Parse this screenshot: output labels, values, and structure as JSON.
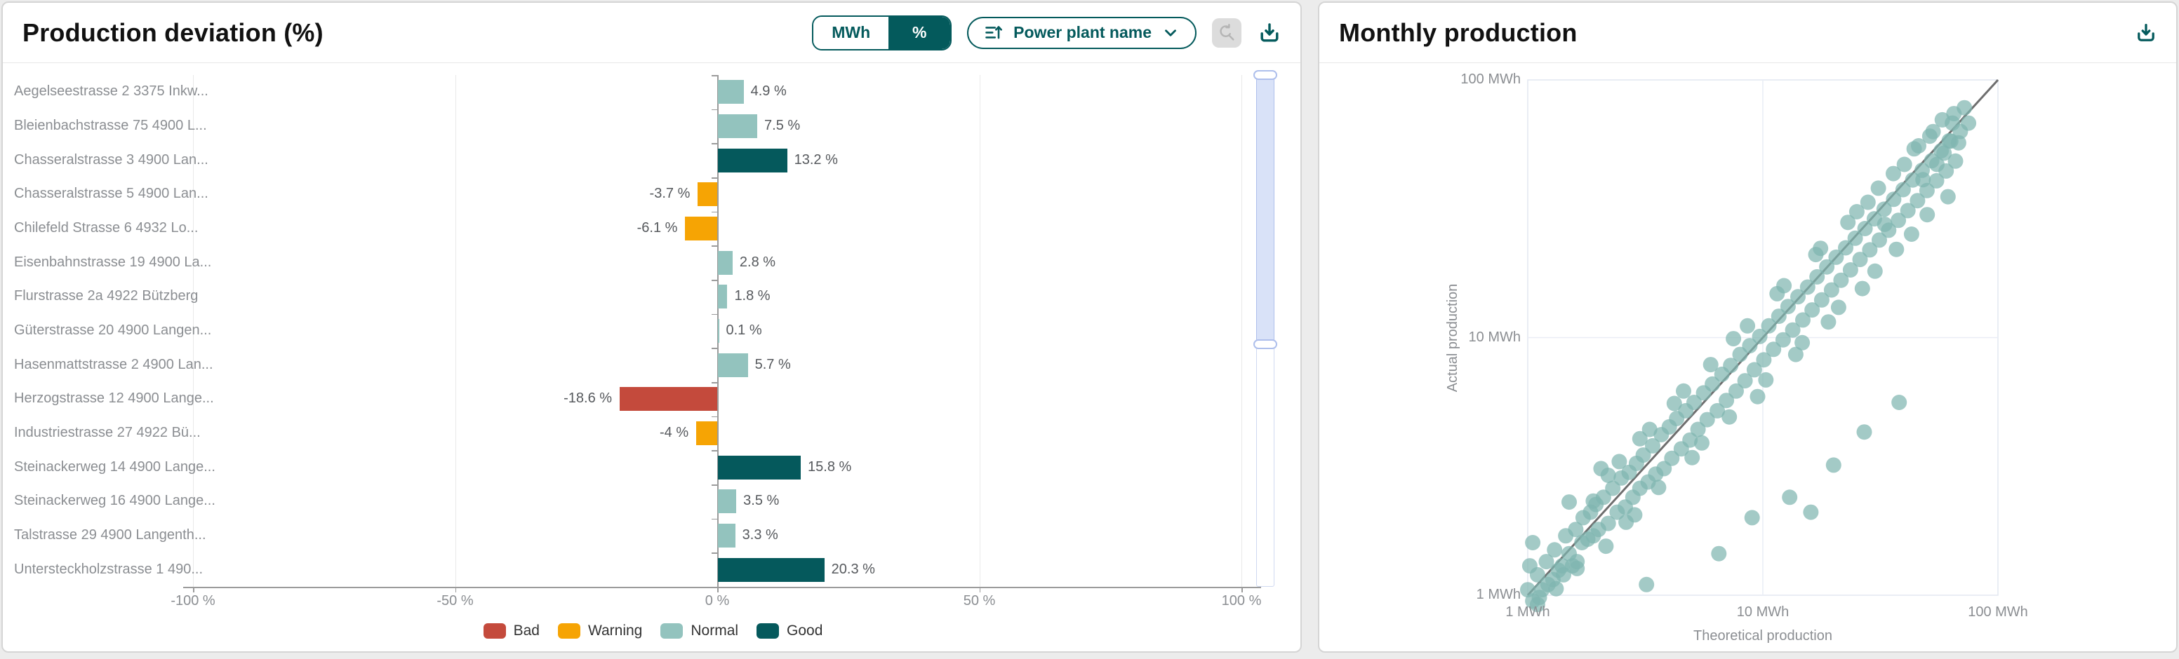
{
  "left_panel": {
    "title": "Production deviation (%)",
    "unit_toggle": {
      "options": [
        "MWh",
        "%"
      ],
      "selected": "%"
    },
    "sort_dropdown": {
      "label": "Power plant name",
      "icon": "sort-ascending-icon"
    },
    "reset_zoom_button": {
      "icon": "reset-zoom-icon",
      "disabled": true
    },
    "download_button": {
      "icon": "download-icon"
    }
  },
  "right_panel": {
    "title": "Monthly production",
    "download_button": {
      "icon": "download-icon"
    }
  },
  "colors": {
    "accent_teal": "#045a5c",
    "bad": "#c44a3c",
    "warning": "#f6a404",
    "normal": "#93c3be",
    "good": "#05595c",
    "scatter_point": "#7fb6b0",
    "reference_line": "#6e6e6e"
  },
  "chart_data": [
    {
      "type": "bar",
      "orientation": "horizontal",
      "title": "Production deviation (%)",
      "categories": [
        "Aegelseestrasse 2 3375 Inkw...",
        "Bleienbachstrasse 75 4900 L...",
        "Chasseralstrasse 3 4900 Lan...",
        "Chasseralstrasse 5 4900 Lan...",
        "Chilefeld Strasse 6 4932 Lo...",
        "Eisenbahnstrasse 19 4900 La...",
        "Flurstrasse 2a 4922 Bützberg",
        "Güterstrasse 20 4900 Langen...",
        "Hasenmattstrasse 2 4900 Lan...",
        "Herzogstrasse 12 4900 Lange...",
        "Industriestrasse 27 4922 Bü...",
        "Steinackerweg 14 4900 Lange...",
        "Steinackerweg 16 4900 Lange...",
        "Talstrasse 29 4900 Langenth...",
        "Untersteckholzstrasse 1 490..."
      ],
      "values": [
        4.9,
        7.5,
        13.2,
        -3.7,
        -6.1,
        2.8,
        1.8,
        0.1,
        5.7,
        -18.6,
        -4,
        15.8,
        3.5,
        3.3,
        20.3
      ],
      "value_labels": [
        "4.9 %",
        "7.5 %",
        "13.2 %",
        "-3.7 %",
        "-6.1 %",
        "2.8 %",
        "1.8 %",
        "0.1 %",
        "5.7 %",
        "-18.6 %",
        "-4 %",
        "15.8 %",
        "3.5 %",
        "3.3 %",
        "20.3 %"
      ],
      "statuses": [
        "Normal",
        "Normal",
        "Good",
        "Warning",
        "Warning",
        "Normal",
        "Normal",
        "Normal",
        "Normal",
        "Bad",
        "Warning",
        "Good",
        "Normal",
        "Normal",
        "Good"
      ],
      "xlim": [
        -100,
        100
      ],
      "x_ticks": [
        "-100 %",
        "-50 %",
        "0 %",
        "50 %",
        "100 %"
      ],
      "x_tick_values": [
        -100,
        -50,
        0,
        50,
        100
      ],
      "grid": true,
      "legend_position": "bottom",
      "legend": [
        {
          "label": "Bad",
          "color": "#c44a3c"
        },
        {
          "label": "Warning",
          "color": "#f6a404"
        },
        {
          "label": "Normal",
          "color": "#93c3be"
        },
        {
          "label": "Good",
          "color": "#05595c"
        }
      ],
      "scrollbar": {
        "orientation": "vertical",
        "selected_from_pct": 0,
        "selected_to_pct": 52
      }
    },
    {
      "type": "scatter",
      "title": "Monthly production",
      "xlabel": "Theoretical production",
      "ylabel": "Actual production",
      "x_scale": "log",
      "y_scale": "log",
      "xlim": [
        1,
        100
      ],
      "ylim": [
        1,
        100
      ],
      "x_ticks": [
        "1 MWh",
        "10 MWh",
        "100 MWh"
      ],
      "x_tick_values": [
        1,
        10,
        100
      ],
      "y_ticks": [
        "1 MWh",
        "10 MWh",
        "100 MWh"
      ],
      "y_tick_values": [
        1,
        10,
        100
      ],
      "grid": true,
      "reference_line": {
        "from": [
          1,
          1
        ],
        "to": [
          100,
          100
        ]
      },
      "points": [
        [
          1.0,
          1.05
        ],
        [
          1.05,
          0.95
        ],
        [
          1.02,
          1.3
        ],
        [
          1.1,
          1.2
        ],
        [
          1.12,
          0.98
        ],
        [
          1.15,
          1.05
        ],
        [
          1.2,
          1.35
        ],
        [
          1.22,
          1.1
        ],
        [
          1.05,
          1.6
        ],
        [
          1.3,
          1.5
        ],
        [
          1.28,
          1.15
        ],
        [
          1.35,
          1.25
        ],
        [
          1.4,
          1.3
        ],
        [
          1.45,
          1.7
        ],
        [
          1.42,
          1.2
        ],
        [
          1.5,
          1.45
        ],
        [
          1.5,
          2.3
        ],
        [
          1.55,
          1.3
        ],
        [
          1.6,
          1.8
        ],
        [
          1.62,
          1.35
        ],
        [
          1.7,
          1.6
        ],
        [
          1.72,
          2.0
        ],
        [
          1.8,
          1.65
        ],
        [
          1.85,
          2.1
        ],
        [
          1.9,
          1.7
        ],
        [
          1.95,
          2.25
        ],
        [
          2.0,
          1.8
        ],
        [
          2.05,
          3.1
        ],
        [
          2.1,
          2.4
        ],
        [
          2.2,
          1.9
        ],
        [
          2.3,
          2.6
        ],
        [
          2.4,
          2.1
        ],
        [
          2.5,
          2.85
        ],
        [
          2.6,
          2.2
        ],
        [
          2.7,
          3.0
        ],
        [
          2.8,
          2.4
        ],
        [
          2.9,
          3.25
        ],
        [
          3.0,
          2.6
        ],
        [
          3.1,
          3.5
        ],
        [
          3.2,
          1.1
        ],
        [
          3.25,
          2.75
        ],
        [
          3.4,
          3.8
        ],
        [
          3.5,
          2.95
        ],
        [
          3.7,
          4.2
        ],
        [
          3.8,
          3.1
        ],
        [
          4.0,
          4.5
        ],
        [
          4.1,
          3.4
        ],
        [
          4.3,
          4.85
        ],
        [
          4.5,
          3.7
        ],
        [
          4.7,
          5.2
        ],
        [
          4.9,
          4.0
        ],
        [
          5.1,
          5.6
        ],
        [
          5.3,
          4.4
        ],
        [
          5.6,
          6.1
        ],
        [
          5.8,
          4.8
        ],
        [
          6.1,
          6.6
        ],
        [
          6.4,
          5.2
        ],
        [
          6.5,
          1.45
        ],
        [
          6.7,
          7.2
        ],
        [
          7.0,
          5.7
        ],
        [
          7.3,
          7.8
        ],
        [
          7.7,
          6.2
        ],
        [
          8.0,
          8.6
        ],
        [
          8.4,
          6.8
        ],
        [
          8.8,
          9.3
        ],
        [
          9.0,
          2.0
        ],
        [
          9.2,
          7.5
        ],
        [
          9.7,
          10.1
        ],
        [
          10.1,
          8.2
        ],
        [
          10.6,
          11.1
        ],
        [
          11.1,
          9.0
        ],
        [
          11.7,
          12.1
        ],
        [
          12.2,
          9.8
        ],
        [
          12.8,
          13.2
        ],
        [
          13.0,
          2.4
        ],
        [
          13.4,
          10.7
        ],
        [
          14.1,
          14.4
        ],
        [
          14.8,
          11.7
        ],
        [
          15.5,
          15.7
        ],
        [
          16.0,
          2.1
        ],
        [
          16.2,
          12.8
        ],
        [
          17.0,
          17.2
        ],
        [
          17.8,
          14.0
        ],
        [
          18.7,
          18.8
        ],
        [
          19.6,
          15.3
        ],
        [
          20.0,
          3.2
        ],
        [
          20.5,
          20.5
        ],
        [
          21.5,
          16.7
        ],
        [
          22.5,
          22.3
        ],
        [
          23.6,
          18.3
        ],
        [
          24.7,
          24.3
        ],
        [
          25.9,
          20.1
        ],
        [
          27.0,
          4.3
        ],
        [
          27.2,
          26.5
        ],
        [
          28.5,
          21.9
        ],
        [
          29.8,
          28.9
        ],
        [
          31.3,
          23.9
        ],
        [
          32.8,
          31.5
        ],
        [
          34.3,
          26.1
        ],
        [
          36.0,
          34.4
        ],
        [
          37.7,
          28.5
        ],
        [
          38.0,
          5.6
        ],
        [
          39.5,
          37.5
        ],
        [
          41.4,
          31.1
        ],
        [
          43.4,
          40.9
        ],
        [
          45.5,
          34.0
        ],
        [
          47.6,
          44.6
        ],
        [
          49.9,
          37.2
        ],
        [
          52.3,
          48.6
        ],
        [
          54.8,
          40.6
        ],
        [
          57.4,
          53.1
        ],
        [
          60.2,
          44.3
        ],
        [
          63.0,
          57.9
        ],
        [
          66.0,
          48.4
        ],
        [
          69.2,
          63.1
        ],
        [
          72.0,
          78.0
        ],
        [
          65.0,
          74.0
        ],
        [
          75.0,
          68.0
        ],
        [
          1.1,
          0.92
        ],
        [
          1.32,
          1.06
        ],
        [
          1.62,
          1.27
        ],
        [
          1.9,
          2.32
        ],
        [
          2.2,
          2.92
        ],
        [
          2.62,
          1.92
        ],
        [
          3.0,
          4.05
        ],
        [
          3.6,
          2.62
        ],
        [
          4.2,
          5.55
        ],
        [
          5.0,
          3.42
        ],
        [
          6.0,
          7.85
        ],
        [
          7.2,
          4.92
        ],
        [
          8.6,
          11.1
        ],
        [
          10.3,
          6.85
        ],
        [
          12.3,
          15.9
        ],
        [
          14.7,
          9.55
        ],
        [
          17.6,
          22.2
        ],
        [
          21.0,
          13.1
        ],
        [
          25.1,
          30.8
        ],
        [
          30.0,
          18.1
        ],
        [
          35.9,
          43.3
        ],
        [
          42.9,
          25.2
        ],
        [
          51.3,
          60.5
        ],
        [
          61.3,
          35.2
        ],
        [
          2.15,
          1.55
        ],
        [
          2.45,
          3.3
        ],
        [
          2.85,
          2.05
        ],
        [
          3.3,
          4.4
        ],
        [
          4.6,
          6.2
        ],
        [
          5.5,
          3.9
        ],
        [
          7.5,
          9.9
        ],
        [
          9.5,
          5.9
        ],
        [
          11.5,
          14.8
        ],
        [
          13.8,
          8.6
        ],
        [
          16.8,
          21.0
        ],
        [
          19.0,
          11.5
        ],
        [
          23.0,
          28.0
        ],
        [
          26.5,
          15.5
        ],
        [
          31.0,
          38.0
        ],
        [
          37.0,
          22.0
        ],
        [
          44.0,
          54.0
        ],
        [
          50.0,
          30.0
        ],
        [
          58.0,
          70.0
        ],
        [
          40.0,
          47.0
        ],
        [
          28.0,
          33.5
        ],
        [
          33.0,
          27.5
        ],
        [
          46.0,
          55.5
        ],
        [
          55.0,
          47.0
        ],
        [
          62.0,
          58.0
        ],
        [
          48.0,
          41.0
        ],
        [
          53.0,
          63.0
        ],
        [
          68.0,
          57.0
        ],
        [
          59.0,
          52.0
        ],
        [
          64.0,
          68.0
        ]
      ]
    }
  ]
}
